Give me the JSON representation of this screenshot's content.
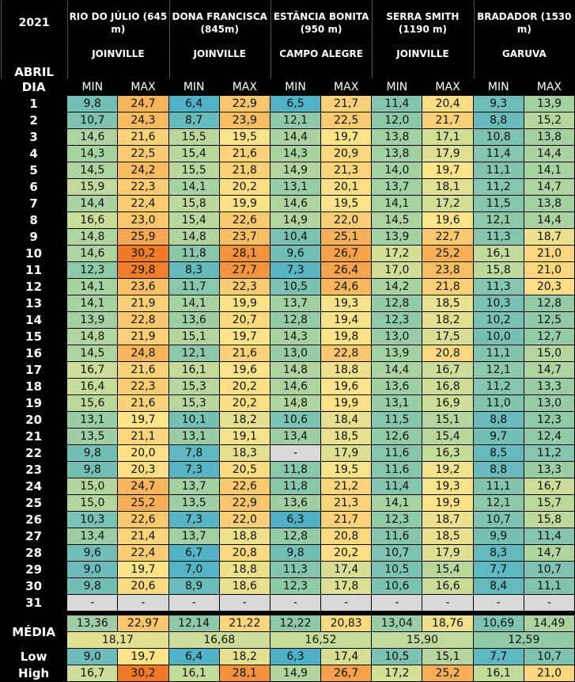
{
  "header": {
    "year": "2021",
    "month": "ABRIL",
    "day_label": "DIA",
    "col_labels": [
      "MIN",
      "MAX"
    ],
    "stations": [
      {
        "name": "RIO DO JÚLIO (645 m)",
        "city": "JOINVILLE"
      },
      {
        "name": "DONA FRANCISCA (845m)",
        "city": "JOINVILLE"
      },
      {
        "name": "ESTÂNCIA BONITA (950 m)",
        "city": "CAMPO ALEGRE"
      },
      {
        "name": "SERRA SMITH (1190 m)",
        "city": "JOINVILLE"
      },
      {
        "name": "BRADADOR (1530 m)",
        "city": "GARUVA"
      }
    ]
  },
  "table": {
    "rows": [
      [
        "1",
        "9,8",
        "24,7",
        "6,4",
        "22,9",
        "6,5",
        "21,7",
        "11,4",
        "20,4",
        "9,3",
        "13,9"
      ],
      [
        "2",
        "10,7",
        "24,3",
        "8,7",
        "23,9",
        "12,1",
        "22,5",
        "12,0",
        "21,7",
        "8,8",
        "15,2"
      ],
      [
        "3",
        "14,6",
        "21,6",
        "15,5",
        "19,5",
        "14,4",
        "19,7",
        "13,8",
        "17,1",
        "10,8",
        "13,8"
      ],
      [
        "4",
        "14,3",
        "22,5",
        "15,4",
        "21,6",
        "14,3",
        "20,9",
        "13,8",
        "17,9",
        "11,4",
        "14,4"
      ],
      [
        "5",
        "14,5",
        "24,2",
        "15,5",
        "21,8",
        "14,9",
        "21,3",
        "14,0",
        "19,7",
        "11,1",
        "14,1"
      ],
      [
        "6",
        "15,9",
        "22,3",
        "14,1",
        "20,2",
        "13,1",
        "20,1",
        "13,7",
        "18,1",
        "11,2",
        "14,7"
      ],
      [
        "7",
        "14,4",
        "22,4",
        "15,8",
        "19,9",
        "14,6",
        "19,5",
        "14,1",
        "17,2",
        "11,5",
        "13,8"
      ],
      [
        "8",
        "16,6",
        "23,0",
        "15,4",
        "22,6",
        "14,9",
        "22,0",
        "14,5",
        "19,6",
        "12,1",
        "14,4"
      ],
      [
        "9",
        "14,8",
        "25,9",
        "14,8",
        "23,7",
        "10,4",
        "25,1",
        "13,9",
        "22,7",
        "11,3",
        "18,7"
      ],
      [
        "10",
        "14,6",
        "30,2",
        "11,8",
        "28,1",
        "9,6",
        "26,7",
        "17,2",
        "25,2",
        "16,1",
        "21,0"
      ],
      [
        "11",
        "12,3",
        "29,8",
        "8,3",
        "27,7",
        "7,3",
        "26,4",
        "17,0",
        "23,8",
        "15,8",
        "21,0"
      ],
      [
        "12",
        "14,1",
        "23,6",
        "11,7",
        "22,3",
        "10,5",
        "24,6",
        "14,2",
        "21,8",
        "11,3",
        "20,3"
      ],
      [
        "13",
        "14,1",
        "21,9",
        "14,1",
        "19,9",
        "13,7",
        "19,3",
        "12,8",
        "18,5",
        "10,3",
        "12,8"
      ],
      [
        "14",
        "13,9",
        "22,8",
        "13,6",
        "20,7",
        "12,8",
        "19,4",
        "12,3",
        "18,2",
        "10,2",
        "12,5"
      ],
      [
        "15",
        "14,8",
        "21,9",
        "15,1",
        "19,7",
        "14,3",
        "19,8",
        "13,0",
        "17,5",
        "10,0",
        "12,7"
      ],
      [
        "16",
        "14,5",
        "24,8",
        "12,1",
        "21,6",
        "13,0",
        "22,8",
        "13,9",
        "20,8",
        "11,1",
        "15,0"
      ],
      [
        "17",
        "16,7",
        "21,6",
        "16,1",
        "19,6",
        "14,8",
        "18,8",
        "14,4",
        "16,7",
        "12,1",
        "14,7"
      ],
      [
        "18",
        "16,4",
        "22,3",
        "15,3",
        "20,2",
        "14,6",
        "19,6",
        "13,6",
        "16,8",
        "11,2",
        "13,3"
      ],
      [
        "19",
        "15,6",
        "21,6",
        "15,3",
        "20,2",
        "14,8",
        "19,9",
        "13,1",
        "16,9",
        "11,0",
        "13,0"
      ],
      [
        "20",
        "13,1",
        "19,7",
        "10,1",
        "18,2",
        "10,6",
        "18,4",
        "11,5",
        "15,1",
        "8,8",
        "12,3"
      ],
      [
        "21",
        "13,5",
        "21,1",
        "13,1",
        "19,1",
        "13,4",
        "18,5",
        "12,6",
        "15,4",
        "9,7",
        "12,4"
      ],
      [
        "22",
        "9,8",
        "20,0",
        "7,8",
        "18,3",
        "-",
        "17,9",
        "11,6",
        "16,3",
        "8,5",
        "11,2"
      ],
      [
        "23",
        "9,8",
        "20,3",
        "7,3",
        "20,5",
        "11,8",
        "19,5",
        "11,6",
        "19,2",
        "8,8",
        "13,3"
      ],
      [
        "24",
        "15,0",
        "24,7",
        "13,7",
        "22,6",
        "11,8",
        "21,2",
        "11,4",
        "19,3",
        "11,1",
        "16,7"
      ],
      [
        "25",
        "15,0",
        "25,2",
        "13,5",
        "22,9",
        "13,6",
        "21,3",
        "14,1",
        "19,9",
        "12,1",
        "15,7"
      ],
      [
        "26",
        "10,3",
        "22,6",
        "7,3",
        "22,0",
        "6,3",
        "21,7",
        "12,3",
        "18,7",
        "10,7",
        "15,8"
      ],
      [
        "27",
        "13,4",
        "21,4",
        "13,7",
        "18,8",
        "12,8",
        "20,8",
        "11,6",
        "18,5",
        "9,9",
        "11,4"
      ],
      [
        "28",
        "9,6",
        "22,4",
        "6,7",
        "20,8",
        "9,8",
        "20,2",
        "10,7",
        "17,9",
        "8,3",
        "14,7"
      ],
      [
        "29",
        "9,0",
        "19,7",
        "7,0",
        "18,8",
        "11,3",
        "17,4",
        "10,5",
        "15,4",
        "7,7",
        "10,7"
      ],
      [
        "30",
        "9,8",
        "20,6",
        "8,9",
        "18,6",
        "12,3",
        "17,8",
        "10,6",
        "16,6",
        "8,4",
        "11,1"
      ],
      [
        "31",
        "-",
        "-",
        "-",
        "-",
        "-",
        "-",
        "-",
        "-",
        "-",
        "-"
      ]
    ],
    "media": {
      "label": "MÉDIA",
      "values": [
        "13,36",
        "22,97",
        "12,14",
        "21,22",
        "12,22",
        "20,83",
        "13,04",
        "18,76",
        "10,69",
        "14,49"
      ],
      "averages": [
        "18,17",
        "16,68",
        "16,52",
        "15,90",
        "12,59"
      ]
    },
    "low": [
      "Low",
      "9,0",
      "19,7",
      "6,4",
      "18,2",
      "6,3",
      "17,4",
      "10,5",
      "15,1",
      "7,7",
      "10,7"
    ],
    "high": [
      "High",
      "16,7",
      "30,2",
      "16,1",
      "28,1",
      "14,9",
      "26,7",
      "17,2",
      "25,2",
      "16,1",
      "21,0"
    ]
  }
}
